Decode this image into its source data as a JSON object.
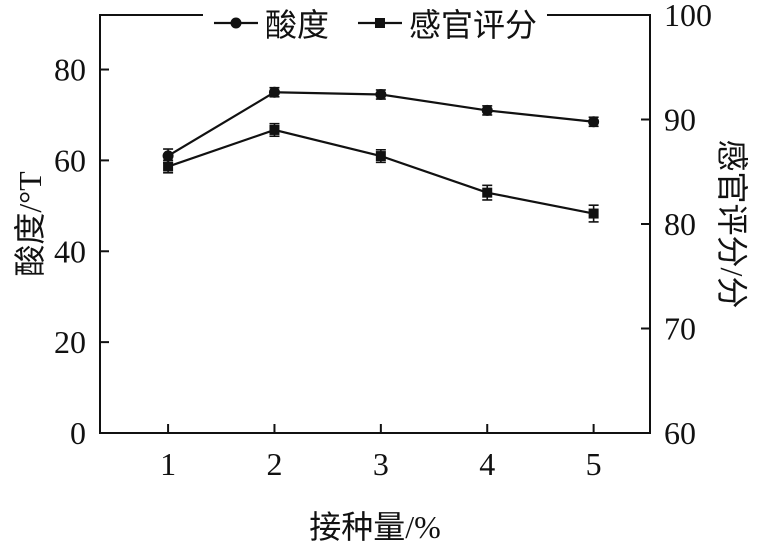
{
  "chart_data": {
    "type": "line",
    "x": [
      1,
      2,
      3,
      4,
      5
    ],
    "series": [
      {
        "name": "酸度",
        "marker": "circle",
        "axis": "left",
        "values": [
          61,
          75,
          74.5,
          71,
          68.5
        ],
        "errors": [
          1.5,
          1,
          1,
          1,
          1
        ]
      },
      {
        "name": "感官评分",
        "marker": "square",
        "axis": "right",
        "values": [
          85.5,
          89,
          86.5,
          83,
          81
        ],
        "errors": [
          0.6,
          0.6,
          0.6,
          0.7,
          0.8
        ]
      }
    ],
    "xlabel": "接种量/%",
    "ylabel_left": "酸度/°T",
    "ylabel_right": "感官评分/分",
    "xlim": [
      0.36,
      5.53
    ],
    "xticks": [
      1,
      2,
      3,
      4,
      5
    ],
    "ylim_left": [
      0,
      92
    ],
    "yticks_left": [
      0,
      20,
      40,
      60,
      80
    ],
    "ylim_right": [
      60,
      100
    ],
    "yticks_right": [
      60,
      70,
      80,
      90,
      100
    ],
    "legend_position": "top",
    "color": "#111111",
    "grid": false,
    "title": ""
  }
}
